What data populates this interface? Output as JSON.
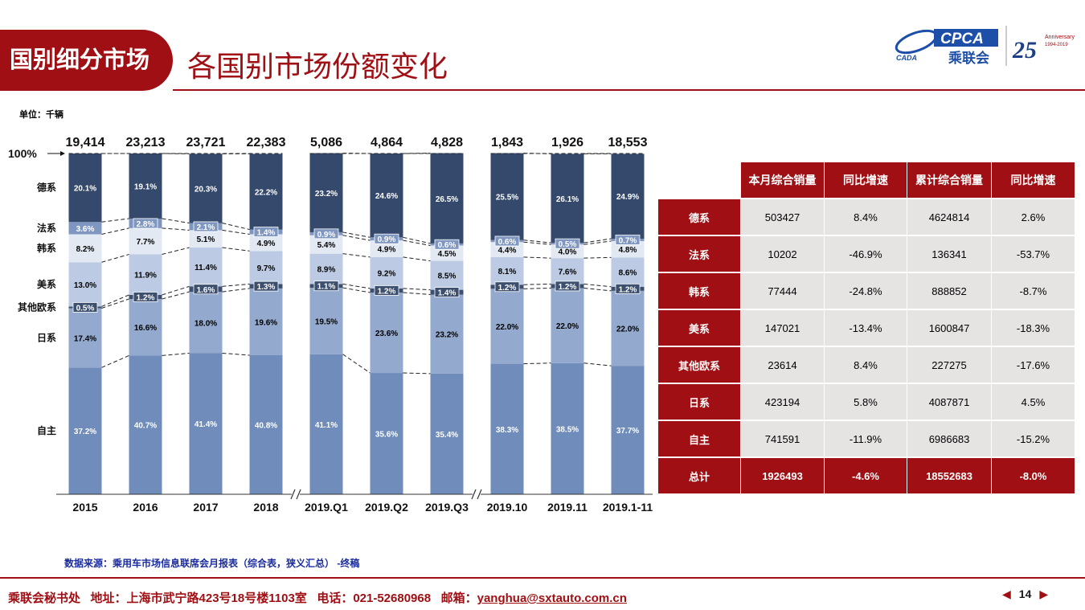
{
  "header": {
    "section": "国别细分市场",
    "title": "各国别市场份额变化",
    "logo": {
      "org_abbr": "CPCA",
      "org_name": "乘联会",
      "sub_logo": "CADA",
      "anniversary_number": "25",
      "anniversary_text": "Anniversary",
      "anniversary_years": "1994-2019"
    }
  },
  "unit_label": "单位：千辆",
  "chart_data": {
    "type": "bar",
    "stacked": "percent",
    "categories": [
      "2015",
      "2016",
      "2017",
      "2018",
      "2019.Q1",
      "2019.Q2",
      "2019.Q3",
      "2019.10",
      "2019.11",
      "2019.1-11"
    ],
    "groups": [
      [
        0,
        1,
        2,
        3
      ],
      [
        4,
        5,
        6
      ],
      [
        7,
        8,
        9
      ]
    ],
    "totals": [
      "19,414",
      "23,213",
      "23,721",
      "22,383",
      "5,086",
      "4,864",
      "4,828",
      "1,843",
      "1,926",
      "18,553"
    ],
    "top_label": "100%",
    "series": [
      {
        "name": "自主",
        "color": "#6f8cba",
        "label_color": "#ffffff",
        "values": [
          37.2,
          40.7,
          41.4,
          40.8,
          41.1,
          35.6,
          35.4,
          38.3,
          38.5,
          37.7
        ]
      },
      {
        "name": "日系",
        "color": "#93a9cd",
        "label_color": "#000000",
        "values": [
          17.4,
          16.6,
          18.0,
          19.6,
          19.5,
          23.6,
          23.2,
          22.0,
          22.0,
          22.0
        ]
      },
      {
        "name": "其他欧系",
        "color": "#3c4f6e",
        "label_color": "#ffffff",
        "values": [
          0.5,
          1.2,
          1.6,
          1.3,
          1.1,
          1.2,
          1.4,
          1.2,
          1.2,
          1.2
        ]
      },
      {
        "name": "美系",
        "color": "#bccbe3",
        "label_color": "#000000",
        "values": [
          13.0,
          11.9,
          11.4,
          9.7,
          8.9,
          9.2,
          8.5,
          8.1,
          7.6,
          8.6
        ]
      },
      {
        "name": "韩系",
        "color": "#e3e9f3",
        "label_color": "#000000",
        "values": [
          8.2,
          7.7,
          5.1,
          4.9,
          5.4,
          4.9,
          4.5,
          4.4,
          4.0,
          4.8
        ]
      },
      {
        "name": "法系",
        "color": "#7f97c0",
        "label_color": "#ffffff",
        "values": [
          3.6,
          2.8,
          2.1,
          1.4,
          0.9,
          0.9,
          0.6,
          0.6,
          0.5,
          0.7
        ]
      },
      {
        "name": "德系",
        "color": "#34496b",
        "label_color": "#ffffff",
        "values": [
          20.1,
          19.1,
          20.3,
          22.2,
          23.2,
          24.6,
          26.5,
          25.5,
          26.1,
          24.9
        ]
      }
    ]
  },
  "table": {
    "headers": [
      "",
      "本月综合销量",
      "同比增速",
      "累计综合销量",
      "同比增速"
    ],
    "rows": [
      {
        "label": "德系",
        "month": "503427",
        "month_yoy": "8.4%",
        "ytd": "4624814",
        "ytd_yoy": "2.6%"
      },
      {
        "label": "法系",
        "month": "10202",
        "month_yoy": "-46.9%",
        "ytd": "136341",
        "ytd_yoy": "-53.7%"
      },
      {
        "label": "韩系",
        "month": "77444",
        "month_yoy": "-24.8%",
        "ytd": "888852",
        "ytd_yoy": "-8.7%"
      },
      {
        "label": "美系",
        "month": "147021",
        "month_yoy": "-13.4%",
        "ytd": "1600847",
        "ytd_yoy": "-18.3%"
      },
      {
        "label": "其他欧系",
        "month": "23614",
        "month_yoy": "8.4%",
        "ytd": "227275",
        "ytd_yoy": "-17.6%"
      },
      {
        "label": "日系",
        "month": "423194",
        "month_yoy": "5.8%",
        "ytd": "4087871",
        "ytd_yoy": "4.5%"
      },
      {
        "label": "自主",
        "month": "741591",
        "month_yoy": "-11.9%",
        "ytd": "6986683",
        "ytd_yoy": "-15.2%"
      }
    ],
    "total": {
      "label": "总计",
      "month": "1926493",
      "month_yoy": "-4.6%",
      "ytd": "18552683",
      "ytd_yoy": "-8.0%"
    }
  },
  "source": "数据来源：乘用车市场信息联席会月报表（综合表，狭义汇总） -终稿",
  "footer": {
    "org": "乘联会秘书处",
    "address": "地址：上海市武宁路423号18号楼1103室",
    "phone": "电话：021-52680968",
    "email_label": "邮箱：",
    "email": "yanghua@sxtauto.com.cn"
  },
  "pager": {
    "prev": "◀",
    "page": "14",
    "next": "▶"
  },
  "colors": {
    "brand": "#a00f14",
    "source_text": "#1b2c9c"
  }
}
